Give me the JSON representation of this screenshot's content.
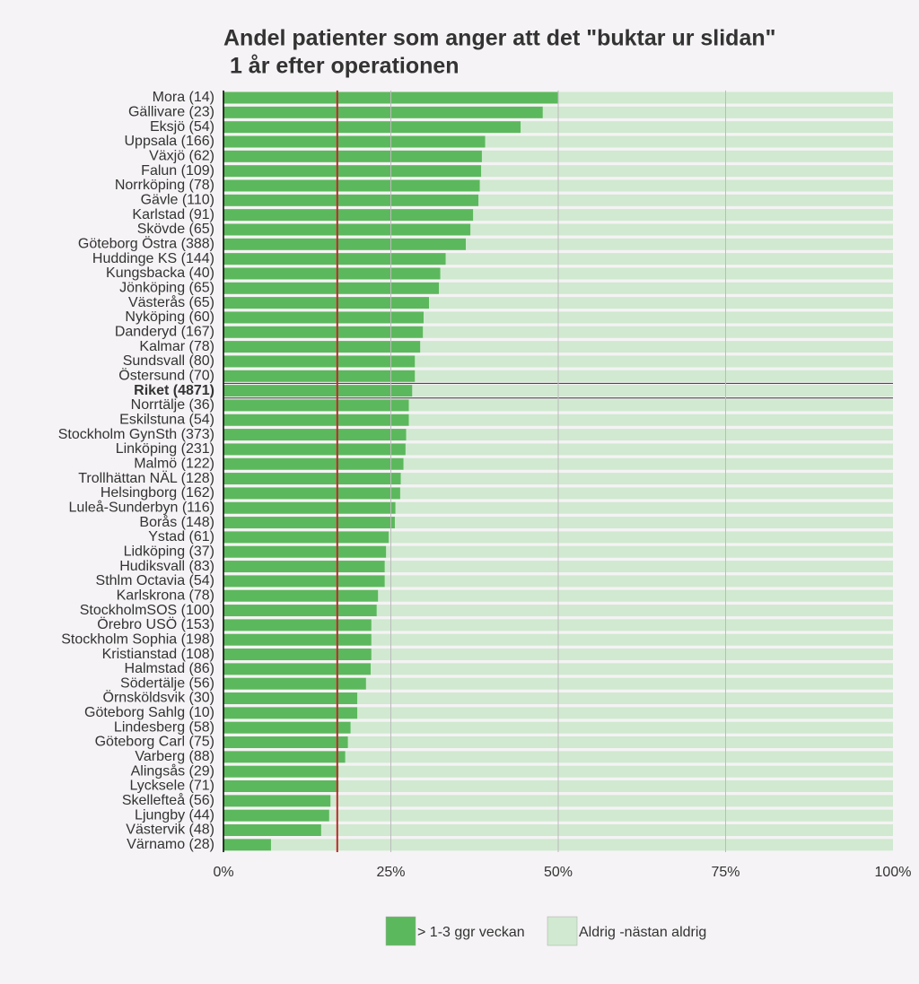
{
  "chart_data": {
    "type": "stacked-barh",
    "title_lines": [
      "Andel patienter som anger att det \"buktar ur slidan\"",
      " 1 år efter operationen"
    ],
    "categories": [
      "Mora (14)",
      "Gällivare (23)",
      "Eksjö (54)",
      "Uppsala (166)",
      "Växjö (62)",
      "Falun (109)",
      "Norrköping (78)",
      "Gävle (110)",
      "Karlstad (91)",
      "Skövde (65)",
      "Göteborg Östra (388)",
      "Huddinge KS (144)",
      "Kungsbacka (40)",
      "Jönköping (65)",
      "Västerås (65)",
      "Nyköping (60)",
      "Danderyd (167)",
      "Kalmar (78)",
      "Sundsvall (80)",
      "Östersund (70)",
      "Riket (4871)",
      "Norrtälje (36)",
      "Eskilstuna (54)",
      "Stockholm GynSth (373)",
      "Linköping (231)",
      "Malmö (122)",
      "Trollhättan NÄL (128)",
      "Helsingborg (162)",
      "Luleå-Sunderbyn (116)",
      "Borås (148)",
      "Ystad (61)",
      "Lidköping (37)",
      "Hudiksvall (83)",
      "Sthlm Octavia (54)",
      "Karlskrona (78)",
      "StockholmSOS (100)",
      "Örebro USÖ (153)",
      "Stockholm Sophia (198)",
      "Kristianstad (108)",
      "Halmstad (86)",
      "Södertälje (56)",
      "Örnsköldsvik (30)",
      "Göteborg Sahlg (10)",
      "Lindesberg (58)",
      "Göteborg Carl (75)",
      "Varberg (88)",
      "Alingsås (29)",
      "Lycksele (71)",
      "Skellefteå (56)",
      "Ljungby (44)",
      "Västervik (48)",
      "Värnamo (28)"
    ],
    "highlight_index": 20,
    "series": [
      {
        "name": "> 1-3 ggr veckan",
        "color": "#5cb85c",
        "values": [
          50.0,
          47.7,
          44.4,
          39.1,
          38.6,
          38.5,
          38.3,
          38.1,
          37.3,
          36.9,
          36.2,
          33.2,
          32.4,
          32.2,
          30.7,
          29.9,
          29.8,
          29.4,
          28.6,
          28.6,
          28.2,
          27.7,
          27.7,
          27.3,
          27.2,
          26.9,
          26.5,
          26.4,
          25.7,
          25.6,
          24.7,
          24.3,
          24.1,
          24.1,
          23.1,
          22.9,
          22.1,
          22.1,
          22.1,
          22.0,
          21.3,
          20.0,
          20.0,
          19.0,
          18.6,
          18.2,
          17.2,
          17.2,
          16.0,
          15.8,
          14.6,
          7.1
        ]
      },
      {
        "name": "Aldrig -nästan aldrig",
        "color": "#d0e9d0",
        "values": [
          50.0,
          52.3,
          55.6,
          60.9,
          61.4,
          61.5,
          61.7,
          61.9,
          62.7,
          63.1,
          63.8,
          66.8,
          67.6,
          67.8,
          69.3,
          70.1,
          70.2,
          70.6,
          71.4,
          71.4,
          71.8,
          72.3,
          72.3,
          72.7,
          72.8,
          73.1,
          73.5,
          73.6,
          74.3,
          74.4,
          75.3,
          75.7,
          75.9,
          75.9,
          76.9,
          77.1,
          77.9,
          77.9,
          77.9,
          78.0,
          78.7,
          80.0,
          80.0,
          81.0,
          81.4,
          81.8,
          82.8,
          82.8,
          84.0,
          84.2,
          85.4,
          92.9
        ]
      }
    ],
    "reference_line": 17.0,
    "reference_color": "#c0282a",
    "xlim": [
      0,
      100
    ],
    "xticks": [
      {
        "value": 0,
        "label": "0%"
      },
      {
        "value": 25,
        "label": "25%"
      },
      {
        "value": 50,
        "label": "50%"
      },
      {
        "value": 75,
        "label": "75%"
      },
      {
        "value": 100,
        "label": "100%"
      }
    ],
    "grid": true
  }
}
